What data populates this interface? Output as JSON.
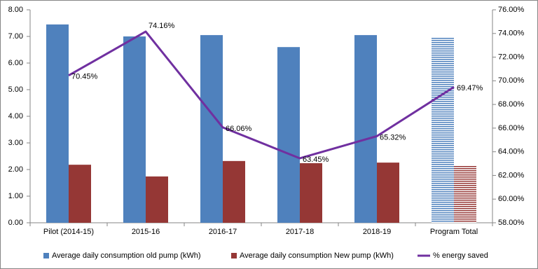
{
  "chart_data": {
    "type": "bar-line",
    "categories": [
      "Pilot (2014-15)",
      "2015-16",
      "2016-17",
      "2017-18",
      "2018-19",
      "Program Total"
    ],
    "hatched": [
      false,
      false,
      false,
      false,
      false,
      true
    ],
    "series": [
      {
        "name": "Average daily consumption old pump (kWh)",
        "type": "bar",
        "color": "#4f81bd",
        "values": [
          7.45,
          7.0,
          7.05,
          6.6,
          7.05,
          6.97
        ]
      },
      {
        "name": "Average daily consumption New pump (kWh)",
        "type": "bar",
        "color": "#953735",
        "values": [
          2.18,
          1.74,
          2.32,
          2.24,
          2.26,
          2.16
        ]
      },
      {
        "name": "% energy saved",
        "type": "line",
        "axis": "y2",
        "color": "#7030a0",
        "values": [
          70.45,
          74.16,
          66.06,
          63.45,
          65.32,
          69.47
        ],
        "value_labels": [
          "70.45%",
          "74.16%",
          "66.06%",
          "63.45%",
          "65.32%",
          "69.47%"
        ]
      }
    ],
    "ylim": [
      0,
      8
    ],
    "yticks": [
      {
        "value": 0,
        "label": "0.00"
      },
      {
        "value": 1,
        "label": "1.00"
      },
      {
        "value": 2,
        "label": "2.00"
      },
      {
        "value": 3,
        "label": "3.00"
      },
      {
        "value": 4,
        "label": "4.00"
      },
      {
        "value": 5,
        "label": "5.00"
      },
      {
        "value": 6,
        "label": "6.00"
      },
      {
        "value": 7,
        "label": "7.00"
      },
      {
        "value": 8,
        "label": "8.00"
      }
    ],
    "y2lim": [
      58,
      76
    ],
    "y2ticks": [
      {
        "value": 58,
        "label": "58.00%"
      },
      {
        "value": 60,
        "label": "60.00%"
      },
      {
        "value": 62,
        "label": "62.00%"
      },
      {
        "value": 64,
        "label": "64.00%"
      },
      {
        "value": 66,
        "label": "66.00%"
      },
      {
        "value": 68,
        "label": "68.00%"
      },
      {
        "value": 70,
        "label": "70.00%"
      },
      {
        "value": 72,
        "label": "72.00%"
      },
      {
        "value": 74,
        "label": "74.00%"
      },
      {
        "value": 76,
        "label": "76.00%"
      }
    ],
    "legend": "bottom"
  }
}
